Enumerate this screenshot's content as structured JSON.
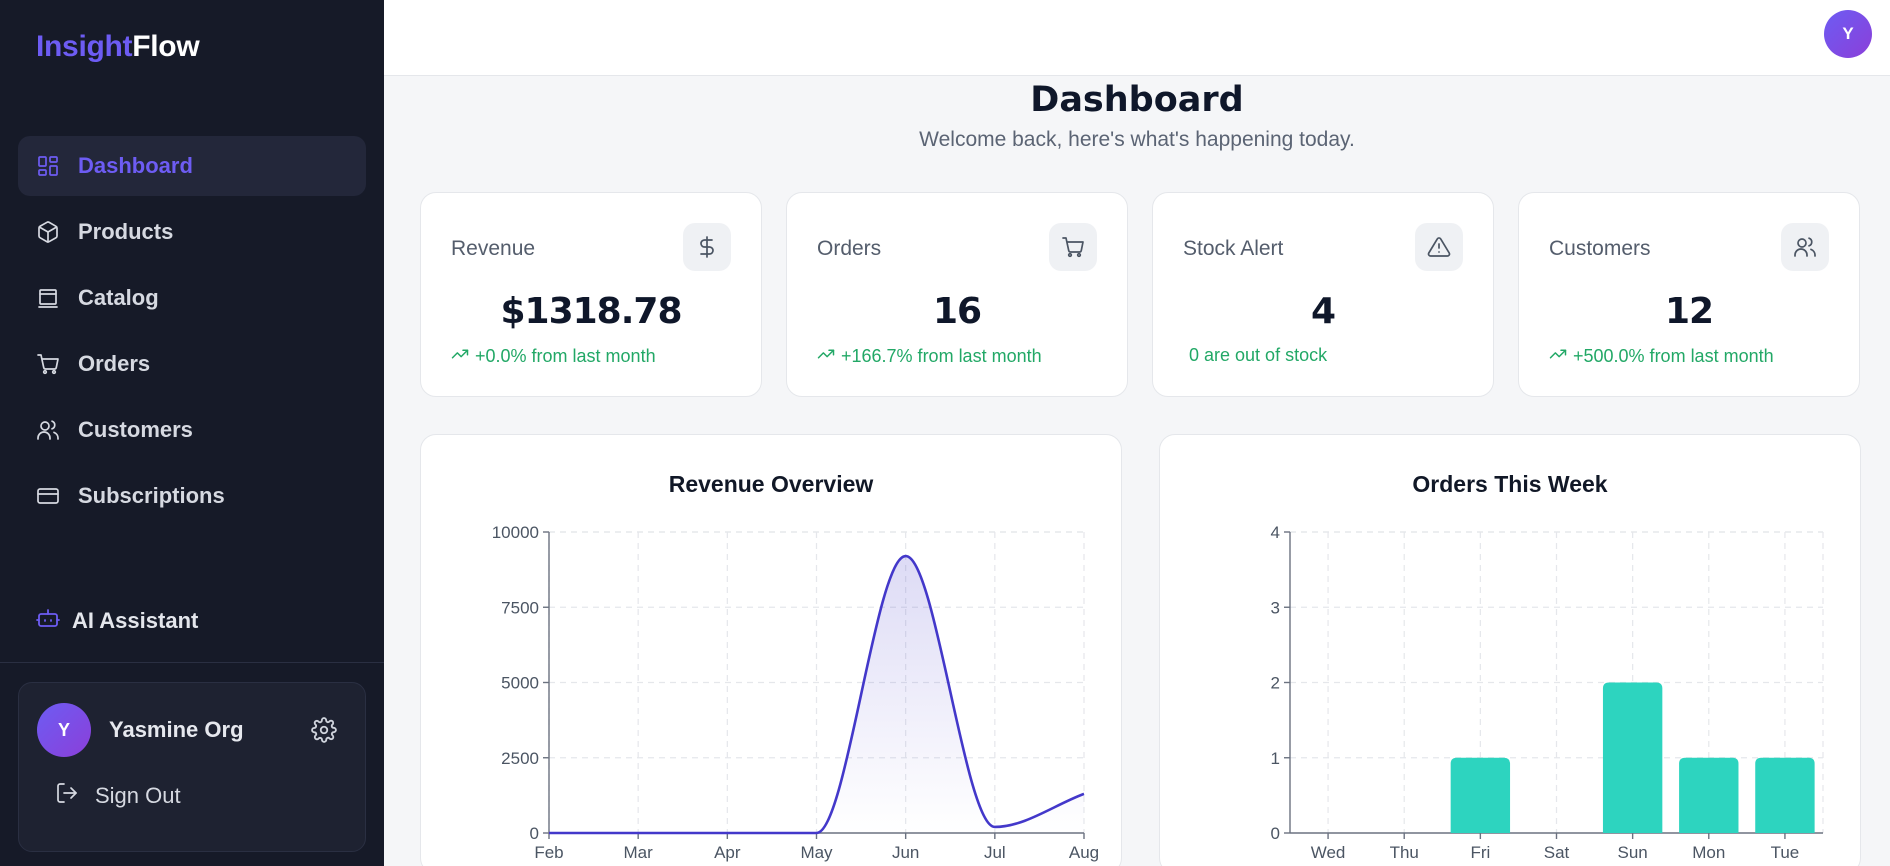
{
  "brand": {
    "part1": "Insight",
    "part2": "Flow"
  },
  "sidebar": {
    "items": [
      {
        "label": "Dashboard",
        "icon": "dashboard-icon"
      },
      {
        "label": "Products",
        "icon": "box-icon"
      },
      {
        "label": "Catalog",
        "icon": "catalog-icon"
      },
      {
        "label": "Orders",
        "icon": "cart-icon"
      },
      {
        "label": "Customers",
        "icon": "users-icon"
      },
      {
        "label": "Subscriptions",
        "icon": "credit-card-icon"
      }
    ],
    "ai_label": "AI Assistant",
    "user": {
      "initial": "Y",
      "name": "Yasmine Org"
    },
    "signout_label": "Sign Out"
  },
  "topbar": {
    "avatar_initial": "Y"
  },
  "header": {
    "title": "Dashboard",
    "subtitle": "Welcome back, here's what's happening today."
  },
  "stats": [
    {
      "label": "Revenue",
      "value": "$1318.78",
      "delta": "+0.0% from last month",
      "icon": "dollar-icon"
    },
    {
      "label": "Orders",
      "value": "16",
      "delta": "+166.7% from last month",
      "icon": "cart-icon"
    },
    {
      "label": "Stock Alert",
      "value": "4",
      "delta": "0 are out of stock",
      "icon": "alert-triangle-icon"
    },
    {
      "label": "Customers",
      "value": "12",
      "delta": "+500.0% from last month",
      "icon": "users-icon"
    }
  ],
  "colors": {
    "accent": "#6d5cf3",
    "positive": "#22a866",
    "line": "#4338ca",
    "bar": "#2dd4bf"
  },
  "chart_data": [
    {
      "type": "area",
      "title": "Revenue Overview",
      "categories": [
        "Feb",
        "Mar",
        "Apr",
        "May",
        "Jun",
        "Jul",
        "Aug"
      ],
      "values": [
        0,
        0,
        0,
        0,
        9200,
        200,
        1300
      ],
      "ylim": [
        0,
        10000
      ],
      "yticks": [
        0,
        2500,
        5000,
        7500,
        10000
      ],
      "grid": true
    },
    {
      "type": "bar",
      "title": "Orders This Week",
      "categories": [
        "Wed",
        "Thu",
        "Fri",
        "Sat",
        "Sun",
        "Mon",
        "Tue"
      ],
      "values": [
        0,
        0,
        1,
        0,
        2,
        1,
        1
      ],
      "ylim": [
        0,
        4
      ],
      "yticks": [
        0,
        1,
        2,
        3,
        4
      ],
      "grid": true
    }
  ]
}
